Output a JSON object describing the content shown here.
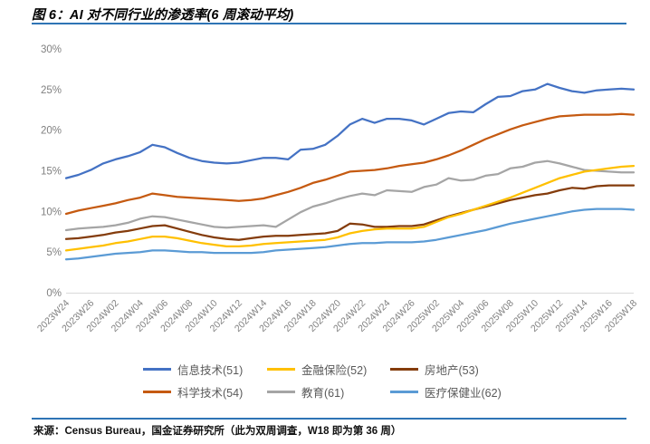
{
  "header": {
    "title": "图 6：AI 对不同行业的渗透率(6 周滚动平均)"
  },
  "footer": {
    "source": "来源：Census Bureau，国金证券研究所（此为双周调查，W18 即为第 36 周）"
  },
  "colors": {
    "rule_blue": "#2E74B5",
    "axis_line": "#D9D9D9",
    "tick_text": "#808080",
    "legend_text": "#595959"
  },
  "chart_data": {
    "type": "line",
    "title": "AI 对不同行业的渗透率(6 周滚动平均)",
    "xlabel": "",
    "ylabel": "",
    "ylim": [
      0,
      30
    ],
    "grid": false,
    "legend_position": "bottom",
    "yticks": [
      "0%",
      "5%",
      "10%",
      "15%",
      "20%",
      "25%",
      "30%"
    ],
    "x_labels": [
      "2023W24",
      "2023W26",
      "2024W02",
      "2024W04",
      "2024W06",
      "2024W08",
      "2024W10",
      "2024W12",
      "2024W14",
      "2024W16",
      "2024W18",
      "2024W20",
      "2024W22",
      "2024W24",
      "2024W26",
      "2025W02",
      "2025W04",
      "2025W06",
      "2025W08",
      "2025W10",
      "2025W12",
      "2025W14",
      "2025W16",
      "2025W18"
    ],
    "x_note": "biweekly survey periods; one axis label shown for every two data points (47 points total)",
    "series": [
      {
        "name": "信息技术(51)",
        "color": "#4472C4",
        "values": [
          14.1,
          14.5,
          15.1,
          15.9,
          16.4,
          16.8,
          17.3,
          18.2,
          17.9,
          17.2,
          16.6,
          16.2,
          16.0,
          15.9,
          16.0,
          16.3,
          16.6,
          16.6,
          16.4,
          17.6,
          17.7,
          18.2,
          19.3,
          20.7,
          21.4,
          20.9,
          21.4,
          21.4,
          21.2,
          20.7,
          21.4,
          22.1,
          22.3,
          22.2,
          23.2,
          24.1,
          24.2,
          24.8,
          25.0,
          25.7,
          25.2,
          24.8,
          24.6,
          24.9,
          25.0,
          25.1,
          25.0
        ]
      },
      {
        "name": "金融保险(52)",
        "color": "#FFC000",
        "values": [
          5.2,
          5.4,
          5.6,
          5.8,
          6.1,
          6.3,
          6.6,
          6.9,
          6.9,
          6.7,
          6.4,
          6.1,
          5.9,
          5.7,
          5.7,
          5.8,
          6.0,
          6.1,
          6.2,
          6.3,
          6.4,
          6.5,
          6.8,
          7.3,
          7.6,
          7.8,
          7.9,
          7.9,
          7.9,
          8.1,
          8.7,
          9.3,
          9.7,
          10.2,
          10.7,
          11.2,
          11.7,
          12.3,
          12.9,
          13.5,
          14.1,
          14.5,
          14.9,
          15.1,
          15.3,
          15.5,
          15.6
        ]
      },
      {
        "name": "房地产(53)",
        "color": "#843C0C",
        "values": [
          6.6,
          6.7,
          6.9,
          7.1,
          7.4,
          7.6,
          7.9,
          8.2,
          8.3,
          7.9,
          7.5,
          7.1,
          6.8,
          6.6,
          6.5,
          6.7,
          6.9,
          7.0,
          7.0,
          7.1,
          7.2,
          7.3,
          7.6,
          8.5,
          8.4,
          8.1,
          8.1,
          8.2,
          8.2,
          8.4,
          8.9,
          9.4,
          9.8,
          10.2,
          10.6,
          11.0,
          11.4,
          11.7,
          12.0,
          12.2,
          12.6,
          12.9,
          12.8,
          13.1,
          13.2,
          13.2,
          13.2
        ]
      },
      {
        "name": "科学技术(54)",
        "color": "#C55A11",
        "values": [
          9.7,
          10.1,
          10.4,
          10.7,
          11.0,
          11.4,
          11.7,
          12.2,
          12.0,
          11.8,
          11.7,
          11.6,
          11.5,
          11.4,
          11.3,
          11.4,
          11.6,
          12.0,
          12.4,
          12.9,
          13.5,
          13.9,
          14.4,
          14.9,
          15.0,
          15.1,
          15.3,
          15.6,
          15.8,
          16.0,
          16.4,
          16.9,
          17.5,
          18.2,
          18.9,
          19.5,
          20.1,
          20.6,
          21.0,
          21.4,
          21.7,
          21.8,
          21.9,
          21.9,
          21.9,
          22.0,
          21.9
        ]
      },
      {
        "name": "教育(61)",
        "color": "#A5A5A5",
        "values": [
          7.7,
          7.9,
          8.0,
          8.1,
          8.3,
          8.6,
          9.1,
          9.4,
          9.3,
          9.0,
          8.7,
          8.4,
          8.1,
          8.0,
          8.1,
          8.2,
          8.3,
          8.1,
          9.0,
          9.9,
          10.6,
          11.0,
          11.5,
          11.9,
          12.2,
          12.0,
          12.6,
          12.5,
          12.4,
          13.0,
          13.3,
          14.1,
          13.8,
          13.9,
          14.4,
          14.6,
          15.3,
          15.5,
          16.0,
          16.2,
          15.9,
          15.5,
          15.1,
          15.0,
          14.9,
          14.8,
          14.8
        ]
      },
      {
        "name": "医疗保健业(62)",
        "color": "#5B9BD5",
        "values": [
          4.1,
          4.2,
          4.4,
          4.6,
          4.8,
          4.9,
          5.0,
          5.2,
          5.2,
          5.1,
          5.0,
          5.0,
          4.9,
          4.9,
          4.9,
          4.9,
          5.0,
          5.2,
          5.3,
          5.4,
          5.5,
          5.6,
          5.8,
          6.0,
          6.1,
          6.1,
          6.2,
          6.2,
          6.2,
          6.3,
          6.5,
          6.8,
          7.1,
          7.4,
          7.7,
          8.1,
          8.5,
          8.8,
          9.1,
          9.4,
          9.7,
          10.0,
          10.2,
          10.3,
          10.3,
          10.3,
          10.2
        ]
      }
    ]
  }
}
